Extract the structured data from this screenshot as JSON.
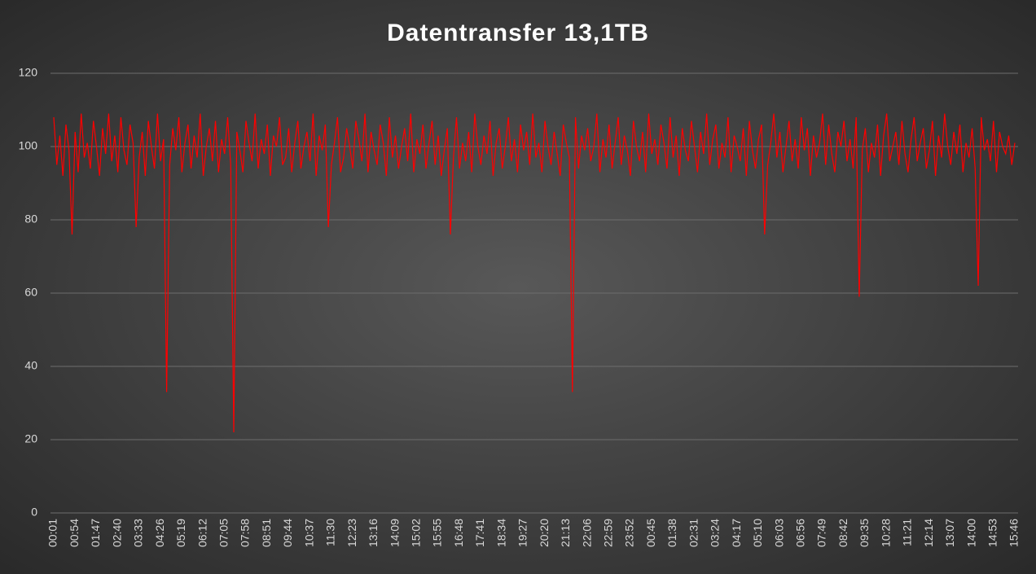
{
  "chart_data": {
    "type": "line",
    "title": "Datentransfer 13,1TB",
    "categories": [
      "00:01",
      null,
      null,
      null,
      null,
      null,
      null,
      "00:54",
      null,
      null,
      null,
      null,
      null,
      null,
      "01:47",
      null,
      null,
      null,
      null,
      null,
      null,
      "02:40",
      null,
      null,
      null,
      null,
      null,
      null,
      "03:33",
      null,
      null,
      null,
      null,
      null,
      null,
      "04:26",
      null,
      null,
      null,
      null,
      null,
      null,
      "05:19",
      null,
      null,
      null,
      null,
      null,
      null,
      "06:12",
      null,
      null,
      null,
      null,
      null,
      null,
      "07:05",
      null,
      null,
      null,
      null,
      null,
      null,
      "07:58",
      null,
      null,
      null,
      null,
      null,
      null,
      "08:51",
      null,
      null,
      null,
      null,
      null,
      null,
      "09:44",
      null,
      null,
      null,
      null,
      null,
      null,
      "10:37",
      null,
      null,
      null,
      null,
      null,
      null,
      "11:30",
      null,
      null,
      null,
      null,
      null,
      null,
      "12:23",
      null,
      null,
      null,
      null,
      null,
      null,
      "13:16",
      null,
      null,
      null,
      null,
      null,
      null,
      "14:09",
      null,
      null,
      null,
      null,
      null,
      null,
      "15:02",
      null,
      null,
      null,
      null,
      null,
      null,
      "15:55",
      null,
      null,
      null,
      null,
      null,
      null,
      "16:48",
      null,
      null,
      null,
      null,
      null,
      null,
      "17:41",
      null,
      null,
      null,
      null,
      null,
      null,
      "18:34",
      null,
      null,
      null,
      null,
      null,
      null,
      "19:27",
      null,
      null,
      null,
      null,
      null,
      null,
      "20:20",
      null,
      null,
      null,
      null,
      null,
      null,
      "21:13",
      null,
      null,
      null,
      null,
      null,
      null,
      "22:06",
      null,
      null,
      null,
      null,
      null,
      null,
      "22:59",
      null,
      null,
      null,
      null,
      null,
      null,
      "23:52",
      null,
      null,
      null,
      null,
      null,
      null,
      "00:45",
      null,
      null,
      null,
      null,
      null,
      null,
      "01:38",
      null,
      null,
      null,
      null,
      null,
      null,
      "02:31",
      null,
      null,
      null,
      null,
      null,
      null,
      "03:24",
      null,
      null,
      null,
      null,
      null,
      null,
      "04:17",
      null,
      null,
      null,
      null,
      null,
      null,
      "05:10",
      null,
      null,
      null,
      null,
      null,
      null,
      "06:03",
      null,
      null,
      null,
      null,
      null,
      null,
      "06:56",
      null,
      null,
      null,
      null,
      null,
      null,
      "07:49",
      null,
      null,
      null,
      null,
      null,
      null,
      "08:42",
      null,
      null,
      null,
      null,
      null,
      null,
      "09:35",
      null,
      null,
      null,
      null,
      null,
      null,
      "10:28",
      null,
      null,
      null,
      null,
      null,
      null,
      "11:21",
      null,
      null,
      null,
      null,
      null,
      null,
      "12:14",
      null,
      null,
      null,
      null,
      null,
      null,
      "13:07",
      null,
      null,
      null,
      null,
      null,
      null,
      "14:00",
      null,
      null,
      null,
      null,
      null,
      null,
      "14:53",
      null,
      null,
      null,
      null,
      null,
      null,
      "15:46"
    ],
    "values": [
      108,
      95,
      103,
      92,
      106,
      99,
      76,
      104,
      93,
      109,
      97,
      101,
      94,
      107,
      100,
      92,
      105,
      98,
      109,
      96,
      103,
      93,
      108,
      99,
      95,
      106,
      101,
      78,
      97,
      104,
      92,
      107,
      100,
      94,
      109,
      96,
      102,
      33,
      95,
      105,
      99,
      108,
      93,
      101,
      106,
      94,
      103,
      97,
      109,
      92,
      100,
      105,
      96,
      107,
      93,
      102,
      98,
      108,
      95,
      22,
      104,
      99,
      93,
      107,
      101,
      96,
      109,
      94,
      102,
      98,
      106,
      92,
      103,
      100,
      108,
      95,
      97,
      105,
      93,
      101,
      107,
      94,
      100,
      104,
      96,
      109,
      92,
      103,
      99,
      106,
      78,
      95,
      101,
      108,
      93,
      97,
      105,
      100,
      94,
      107,
      102,
      96,
      109,
      93,
      104,
      99,
      95,
      106,
      101,
      92,
      108,
      97,
      103,
      94,
      100,
      105,
      96,
      109,
      93,
      102,
      98,
      106,
      94,
      101,
      107,
      95,
      103,
      92,
      99,
      105,
      76,
      97,
      108,
      94,
      101,
      96,
      104,
      93,
      109,
      100,
      95,
      103,
      98,
      107,
      92,
      101,
      105,
      94,
      100,
      108,
      96,
      102,
      93,
      106,
      99,
      104,
      95,
      109,
      97,
      101,
      93,
      107,
      100,
      95,
      104,
      98,
      92,
      106,
      101,
      97,
      33,
      108,
      94,
      103,
      99,
      105,
      96,
      100,
      109,
      93,
      102,
      97,
      106,
      94,
      101,
      108,
      95,
      103,
      99,
      92,
      107,
      100,
      96,
      104,
      93,
      109,
      98,
      102,
      95,
      106,
      101,
      94,
      108,
      97,
      103,
      92,
      105,
      99,
      96,
      107,
      100,
      93,
      104,
      98,
      109,
      95,
      102,
      106,
      94,
      101,
      97,
      108,
      93,
      103,
      100,
      96,
      105,
      92,
      107,
      99,
      94,
      102,
      106,
      76,
      95,
      101,
      109,
      97,
      104,
      93,
      100,
      107,
      96,
      102,
      94,
      108,
      99,
      105,
      92,
      103,
      97,
      101,
      109,
      95,
      106,
      98,
      93,
      104,
      100,
      107,
      96,
      102,
      94,
      108,
      59,
      99,
      105,
      93,
      101,
      97,
      106,
      92,
      103,
      109,
      96,
      100,
      104,
      95,
      107,
      98,
      93,
      102,
      108,
      96,
      101,
      105,
      94,
      99,
      107,
      92,
      103,
      97,
      109,
      100,
      95,
      104,
      98,
      106,
      93,
      101,
      97,
      105,
      94,
      62,
      108,
      99,
      102,
      96,
      107,
      93,
      104,
      100,
      98,
      103,
      95,
      101
    ],
    "color": "#ff0000",
    "ylim": [
      0,
      120
    ],
    "yticks": [
      0,
      20,
      40,
      60,
      80,
      100,
      120
    ],
    "grid": true
  }
}
